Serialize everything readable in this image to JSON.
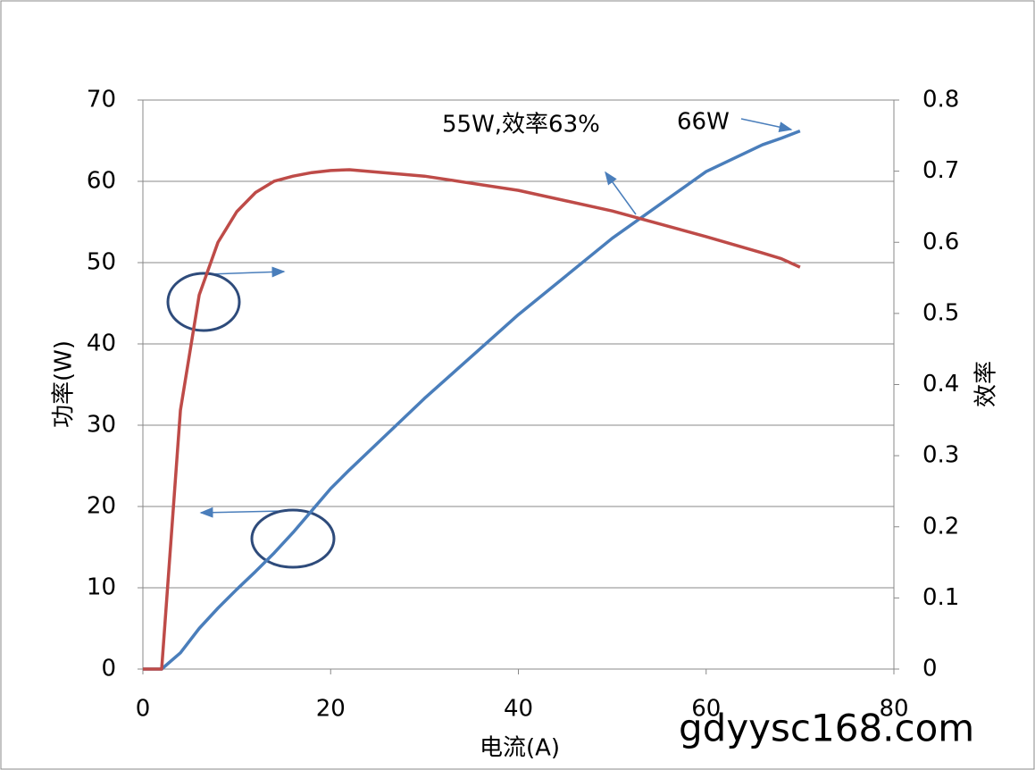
{
  "chart_data": {
    "type": "line",
    "x_label": "电流(A)",
    "y_label": "功率(W)",
    "y2_label": "效率",
    "x": [
      0,
      2,
      4,
      6,
      8,
      10,
      12,
      14,
      16,
      18,
      20,
      22,
      30,
      40,
      50,
      60,
      66,
      68,
      70
    ],
    "series": [
      {
        "name": "功率",
        "color": "#4a7ebb",
        "values": [
          0,
          0,
          2,
          5,
          7.5,
          9.8,
          12,
          14.3,
          16.8,
          19.5,
          22.2,
          24.5,
          33.3,
          43.6,
          53,
          61.2,
          64.5,
          65.3,
          66.2
        ]
      },
      {
        "name": "效率",
        "color": "#be4b48",
        "axis": "y2",
        "values": [
          0,
          0,
          0.364,
          0.526,
          0.6,
          0.643,
          0.67,
          0.686,
          0.693,
          0.698,
          0.701,
          0.702,
          0.693,
          0.673,
          0.644,
          0.608,
          0.585,
          0.577,
          0.565
        ]
      }
    ],
    "xlim": [
      0,
      80
    ],
    "xticks": [
      0,
      20,
      40,
      60,
      80
    ],
    "ylim": [
      0,
      70
    ],
    "yticks": [
      0,
      10,
      20,
      30,
      40,
      50,
      60,
      70
    ],
    "y2lim": [
      0,
      0.8
    ],
    "y2ticks": [
      0,
      0.1,
      0.2,
      0.3,
      0.4,
      0.5,
      0.6,
      0.7,
      0.8
    ],
    "grid": true,
    "annotations": [
      "55W,效率63%",
      "66W"
    ],
    "watermark": "gdyysc168.com"
  }
}
